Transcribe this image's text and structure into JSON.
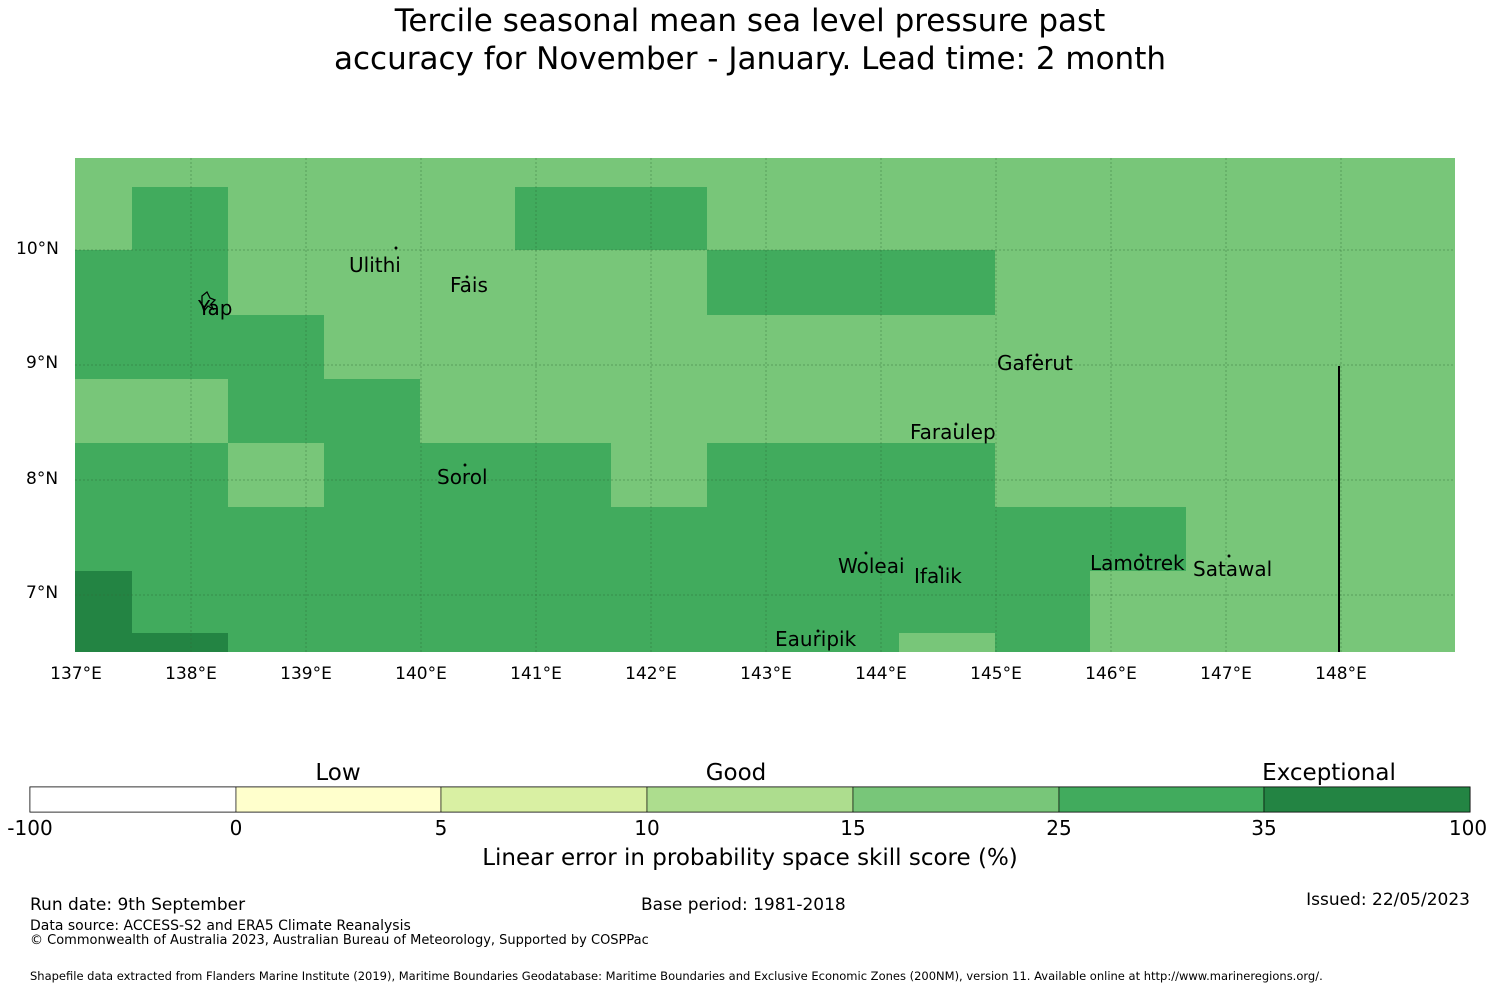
{
  "title_line1": "Tercile seasonal mean sea level pressure past",
  "title_line2": "accuracy for November - January. Lead time: 2 month",
  "map": {
    "lat_labels": [
      "10°N",
      "9°N",
      "8°N",
      "7°N"
    ],
    "lon_labels": [
      "137°E",
      "138°E",
      "139°E",
      "140°E",
      "141°E",
      "142°E",
      "143°E",
      "144°E",
      "145°E",
      "146°E",
      "147°E",
      "148°E"
    ],
    "places": [
      "Ulithi",
      "Fais",
      "Yap",
      "Gaferut",
      "Faraulep",
      "Sorol",
      "Woleai",
      "Ifalik",
      "Lamotrek",
      "Satawal",
      "Eauripik"
    ]
  },
  "colorbar": {
    "categories": [
      "Low",
      "Good",
      "Exceptional"
    ],
    "ticks": [
      "-100",
      "0",
      "5",
      "10",
      "15",
      "25",
      "35",
      "100"
    ],
    "colors": [
      "#ffffff",
      "#ffffcc",
      "#d9f0a3",
      "#addd8e",
      "#78c679",
      "#41ab5d",
      "#238443"
    ],
    "label": "Linear error in probability space skill score (%)"
  },
  "footer": {
    "run_date": "Run date: 9th September",
    "base_period": "Base period: 1981-2018",
    "issued": "Issued: 22/05/2023",
    "data_source": "Data source: ACCESS-S2 and ERA5 Climate Reanalysis",
    "copyright": "© Commonwealth of Australia 2023, Australian Bureau of Meteorology, Supported by COSPPac",
    "shapefile": "Shapefile data extracted from Flanders Marine Institute (2019), Maritime Boundaries Geodatabase: Maritime Boundaries and Exclusive Economic Zones (200NM), version 11. Available online at http://www.marineregions.org/."
  }
}
